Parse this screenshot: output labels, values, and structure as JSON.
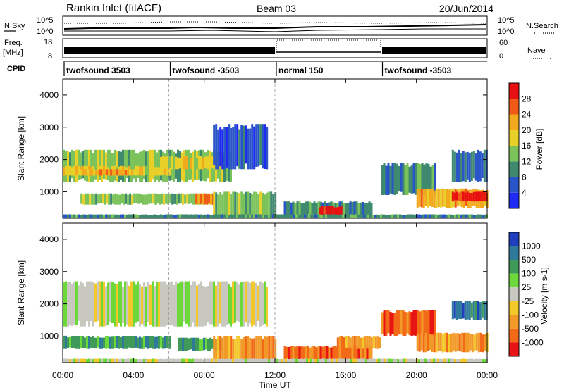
{
  "header": {
    "station": "Rankin Inlet (fitACF)",
    "beam": "Beam 03",
    "date": "20/Jun/2014"
  },
  "strips": {
    "nsky_label": "N.Sky",
    "nsearch_label": "N.Search",
    "noise_ticks": [
      "10^5",
      "10^0"
    ],
    "freq_label_1": "Freq.",
    "freq_label_2": "[MHz]",
    "freq_ticks": [
      "18",
      "8"
    ],
    "nave_label": "Nave",
    "nave_ticks": [
      "60",
      "0"
    ],
    "cpid_label": "CPID",
    "cpid_segments": [
      {
        "label": "twofsound 3503",
        "start_h": 0,
        "end_h": 6
      },
      {
        "label": "twofsound -3503",
        "start_h": 6,
        "end_h": 12
      },
      {
        "label": "normal 150",
        "start_h": 12,
        "end_h": 18
      },
      {
        "label": "twofsound -3503",
        "start_h": 18,
        "end_h": 24
      }
    ]
  },
  "axes": {
    "xlabel": "Time UT",
    "ylabel": "Slant Range [km]",
    "x_ticks": [
      "00:00",
      "04:00",
      "08:00",
      "12:00",
      "16:00",
      "20:00",
      "00:00"
    ],
    "x_tick_hours": [
      0,
      4,
      8,
      12,
      16,
      20,
      24
    ],
    "y_ticks": [
      1000,
      2000,
      3000,
      4000
    ],
    "xlim_hours": [
      0,
      24
    ],
    "ylim_km": [
      180,
      4500
    ]
  },
  "power_scale": {
    "label": "Power [dB]",
    "ticks": [
      "4",
      "8",
      "12",
      "16",
      "20",
      "24",
      "28"
    ],
    "colors": [
      "#1f2bf2",
      "#2a55c8",
      "#3f8a6e",
      "#7cc25a",
      "#e8d028",
      "#f2a91e",
      "#f05a16",
      "#e81010"
    ]
  },
  "velocity_scale": {
    "label": "Velocity [m s-1]",
    "ticks": [
      "1000",
      "500",
      "100",
      "25",
      "-25",
      "-100",
      "-500",
      "-1000"
    ],
    "colors": [
      "#1f3fbf",
      "#2f7a9a",
      "#3f9a5a",
      "#6cd83a",
      "#c8c8c0",
      "#f2c82a",
      "#f29a28",
      "#f26a18",
      "#e81414"
    ]
  },
  "chart_data": [
    {
      "type": "heatmap",
      "title": "Power",
      "xlabel": "Time UT",
      "ylabel": "Slant Range [km]",
      "xlim": [
        0,
        24
      ],
      "ylim": [
        180,
        4500
      ],
      "colorbar": "Power [dB]",
      "regions": [
        {
          "t0": 0.0,
          "t1": 9.5,
          "r0": 1300,
          "r1": 2300,
          "level": 3
        },
        {
          "t0": 0.0,
          "t1": 6.0,
          "r0": 1500,
          "r1": 1800,
          "level": 4
        },
        {
          "t0": 1.0,
          "t1": 4.0,
          "r0": 1500,
          "r1": 1700,
          "level": 5
        },
        {
          "t0": 5.5,
          "t1": 9.0,
          "r0": 1700,
          "r1": 2100,
          "level": 4
        },
        {
          "t0": 8.5,
          "t1": 11.5,
          "r0": 1700,
          "r1": 3100,
          "level": 1
        },
        {
          "t0": 1.0,
          "t1": 8.5,
          "r0": 600,
          "r1": 950,
          "level": 3
        },
        {
          "t0": 7.5,
          "t1": 8.5,
          "r0": 600,
          "r1": 950,
          "level": 6
        },
        {
          "t0": 8.5,
          "t1": 12.0,
          "r0": 200,
          "r1": 1000,
          "level": 3
        },
        {
          "t0": 12.5,
          "t1": 17.5,
          "r0": 250,
          "r1": 700,
          "level": 2
        },
        {
          "t0": 14.5,
          "t1": 15.8,
          "r0": 250,
          "r1": 550,
          "level": 7
        },
        {
          "t0": 18.0,
          "t1": 21.0,
          "r0": 900,
          "r1": 1900,
          "level": 2
        },
        {
          "t0": 20.0,
          "t1": 24.0,
          "r0": 500,
          "r1": 1100,
          "level": 5
        },
        {
          "t0": 22.0,
          "t1": 24.0,
          "r0": 700,
          "r1": 1000,
          "level": 7
        },
        {
          "t0": 22.0,
          "t1": 24.0,
          "r0": 1300,
          "r1": 2300,
          "level": 1
        },
        {
          "t0": 0.0,
          "t1": 24.0,
          "r0": 180,
          "r1": 300,
          "level": 2
        }
      ]
    },
    {
      "type": "heatmap",
      "title": "Velocity",
      "xlabel": "Time UT",
      "ylabel": "Slant Range [km]",
      "xlim": [
        0,
        24
      ],
      "ylim": [
        180,
        4500
      ],
      "colorbar": "Velocity [m s-1]",
      "regions": [
        {
          "t0": 0.0,
          "t1": 11.5,
          "r0": 1300,
          "r1": 2700,
          "level": 4
        },
        {
          "t0": 0.0,
          "t1": 6.0,
          "r0": 600,
          "r1": 1000,
          "level": 2
        },
        {
          "t0": 6.5,
          "t1": 9.0,
          "r0": 550,
          "r1": 950,
          "level": 2
        },
        {
          "t0": 8.5,
          "t1": 12.0,
          "r0": 200,
          "r1": 1000,
          "level": 6
        },
        {
          "t0": 12.5,
          "t1": 17.5,
          "r0": 250,
          "r1": 700,
          "level": 7
        },
        {
          "t0": 15.5,
          "t1": 18.0,
          "r0": 600,
          "r1": 1000,
          "level": 6
        },
        {
          "t0": 18.0,
          "t1": 21.0,
          "r0": 1000,
          "r1": 1800,
          "level": 7
        },
        {
          "t0": 20.0,
          "t1": 24.0,
          "r0": 500,
          "r1": 1100,
          "level": 6
        },
        {
          "t0": 22.0,
          "t1": 24.0,
          "r0": 1500,
          "r1": 2100,
          "level": 1
        },
        {
          "t0": 0.0,
          "t1": 24.0,
          "r0": 180,
          "r1": 300,
          "level": 4
        }
      ]
    }
  ]
}
